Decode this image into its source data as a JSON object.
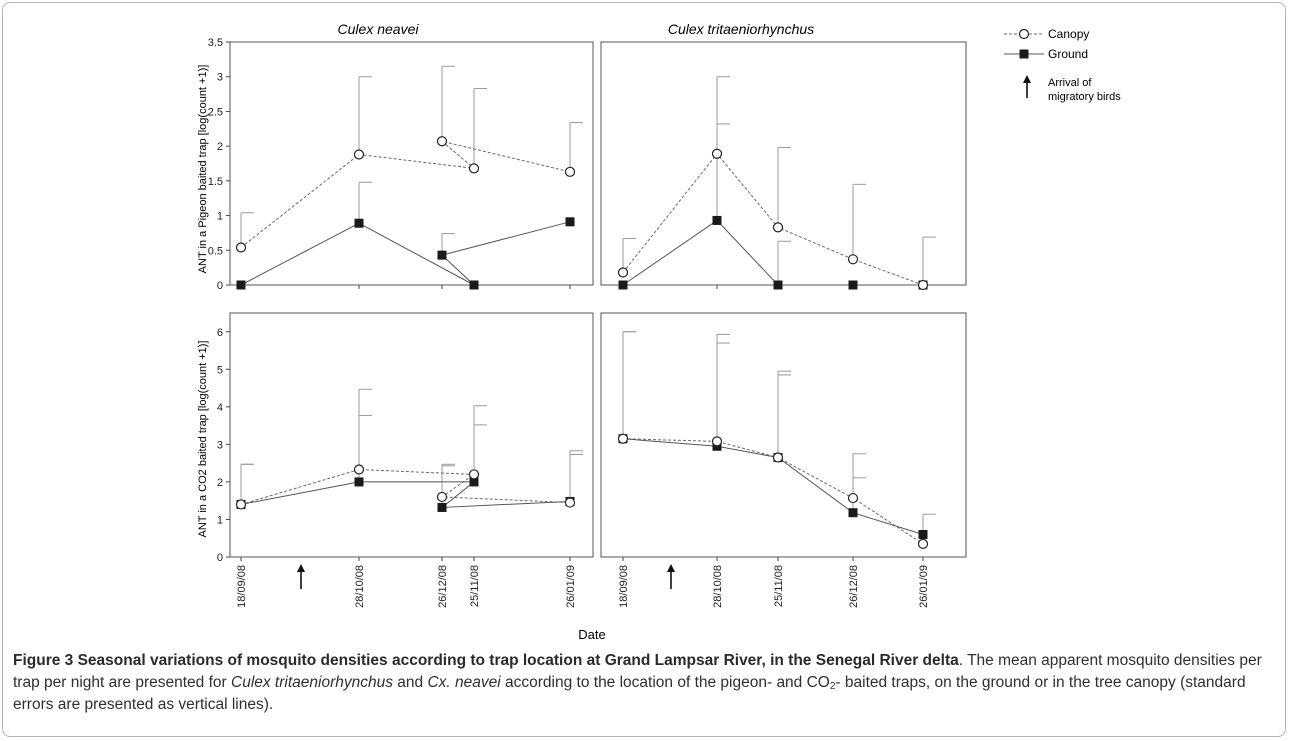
{
  "figure": {
    "column_titles": [
      "Culex neavei",
      "Culex tritaeniorhynchus"
    ],
    "row_ylabels": [
      "ANT in a Pigeon baited trap [log(count +1)]",
      "ANT in a CO2 baited trap [log(count +1)]"
    ],
    "xlabel": "Date",
    "legend": {
      "canopy": "Canopy",
      "ground": "Ground",
      "arrival_line1": "Arrival of",
      "arrival_line2": "migratory birds"
    }
  },
  "chart_data": [
    {
      "type": "line",
      "panel": "top-left",
      "title": "Culex neavei",
      "ylabel": "ANT in a Pigeon baited trap [log(count +1)]",
      "categories": [
        "18/09/08",
        "28/10/08",
        "25/11/08",
        "26/12/08",
        "26/01/09"
      ],
      "ylim": [
        0,
        3.5
      ],
      "yticks": [
        0,
        0.5,
        1,
        1.5,
        2,
        2.5,
        3,
        3.5
      ],
      "ytick_labels": [
        "0",
        "0.5",
        "1",
        "1.5",
        "2",
        "2.5",
        "3",
        "3.5"
      ],
      "series": [
        {
          "name": "Canopy",
          "values": [
            0.54,
            1.88,
            1.68,
            2.07,
            1.63
          ],
          "errors": [
            0.5,
            1.12,
            1.15,
            1.08,
            0.71
          ]
        },
        {
          "name": "Ground",
          "values": [
            0,
            0.89,
            0,
            0.43,
            0.91
          ],
          "errors": [
            0,
            0.59,
            0,
            0.31,
            0
          ]
        }
      ]
    },
    {
      "type": "line",
      "panel": "top-right",
      "title": "Culex tritaeniorhynchus",
      "categories": [
        "18/09/08",
        "28/10/08",
        "25/11/08",
        "26/12/08",
        "26/01/09"
      ],
      "ylim": [
        0,
        3.5
      ],
      "series": [
        {
          "name": "Canopy",
          "values": [
            0.18,
            1.89,
            0.83,
            0.37,
            0.0
          ],
          "errors": [
            0.49,
            1.11,
            1.15,
            1.08,
            0.69
          ]
        },
        {
          "name": "Ground",
          "values": [
            0.0,
            0.93,
            0.0,
            0.0,
            0.0
          ],
          "errors": [
            0,
            1.39,
            0.63,
            0,
            0
          ]
        }
      ]
    },
    {
      "type": "line",
      "panel": "bottom-left",
      "title": "Culex neavei",
      "ylabel": "ANT in a CO2 baited trap [log(count +1)]",
      "categories": [
        "18/09/08",
        "28/10/08",
        "25/11/08",
        "26/12/08",
        "26/01/09"
      ],
      "ylim": [
        0,
        6.5
      ],
      "yticks": [
        0,
        1,
        2,
        3,
        4,
        5,
        6
      ],
      "ytick_labels": [
        "0",
        "1",
        "2",
        "3",
        "4",
        "5",
        "6"
      ],
      "xlabel": "Date",
      "series": [
        {
          "name": "Canopy",
          "values": [
            1.4,
            2.33,
            2.2,
            1.6,
            1.45
          ],
          "errors": [
            1.07,
            2.14,
            1.83,
            0.87,
            1.38
          ]
        },
        {
          "name": "Ground",
          "values": [
            1.4,
            2.0,
            2.0,
            1.32,
            1.48
          ],
          "errors": [
            1.07,
            1.77,
            1.52,
            1.11,
            1.25
          ]
        }
      ]
    },
    {
      "type": "line",
      "panel": "bottom-right",
      "title": "Culex tritaeniorhynchus",
      "categories": [
        "18/09/08",
        "28/10/08",
        "25/11/08",
        "26/12/08",
        "26/01/09"
      ],
      "ylim": [
        0,
        6.5
      ],
      "xlabel": "Date",
      "series": [
        {
          "name": "Canopy",
          "values": [
            3.15,
            3.08,
            2.65,
            1.57,
            0.35
          ],
          "errors": [
            2.85,
            2.85,
            2.3,
            1.18,
            0.79
          ]
        },
        {
          "name": "Ground",
          "values": [
            3.15,
            2.95,
            2.65,
            1.18,
            0.6
          ],
          "errors": [
            2.85,
            2.75,
            2.2,
            0.93,
            0
          ]
        }
      ]
    }
  ],
  "caption": {
    "title": "Figure 3 Seasonal variations of mosquito densities according to trap location at Grand Lampsar River, in the Senegal River delta",
    "title_end": ".",
    "t1": " The mean apparent mosquito densities per trap per night are presented for ",
    "sp1": "Culex tritaeniorhynchus",
    "t2": " and ",
    "sp2": "Cx. neavei",
    "t3": " according to the location of the pigeon- and CO",
    "sub": "2",
    "t4": "- baited traps, on the ground or in the tree canopy (standard errors are presented as vertical lines)."
  },
  "colors": {
    "canopy_line": "#6a6a6a",
    "ground_line": "#555555",
    "marker_fill": "#1a1a1a",
    "error_bar": "#9a9a9a",
    "frame": "#b5b5b5"
  }
}
